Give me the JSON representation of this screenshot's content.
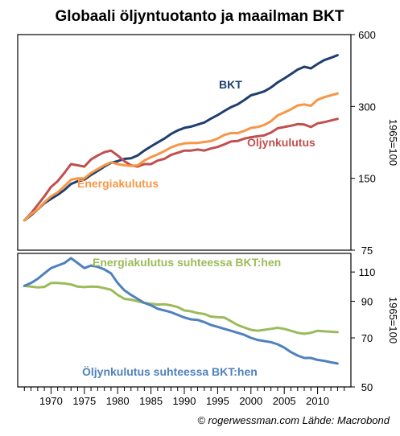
{
  "title": "Globaali öljyntuotanto ja maailman BKT",
  "credit": "© rogerwessman.com Lähde: Macrobond",
  "chart_data": [
    {
      "type": "line",
      "ylabel": "1965=100",
      "yscale": "log",
      "ylim": [
        75,
        600
      ],
      "yticks": [
        75,
        150,
        300,
        600
      ],
      "x": [
        1966,
        1967,
        1968,
        1969,
        1970,
        1971,
        1972,
        1973,
        1974,
        1975,
        1976,
        1977,
        1978,
        1979,
        1980,
        1981,
        1982,
        1983,
        1984,
        1985,
        1986,
        1987,
        1988,
        1989,
        1990,
        1991,
        1992,
        1993,
        1994,
        1995,
        1996,
        1997,
        1998,
        1999,
        2000,
        2001,
        2002,
        2003,
        2004,
        2005,
        2006,
        2007,
        2008,
        2009,
        2010,
        2011,
        2012,
        2013
      ],
      "series": [
        {
          "name": "BKT",
          "color": "#1f3f6e",
          "values": [
            100,
            105,
            111,
            118,
            123,
            128,
            134,
            142,
            146,
            148,
            155,
            161,
            168,
            174,
            177,
            181,
            182,
            187,
            196,
            204,
            212,
            220,
            230,
            238,
            244,
            247,
            252,
            257,
            267,
            276,
            287,
            298,
            306,
            319,
            334,
            340,
            347,
            360,
            378,
            393,
            410,
            428,
            440,
            433,
            452,
            469,
            480,
            492
          ]
        },
        {
          "name": "Öljynkulutus",
          "color": "#c0504d",
          "values": [
            100,
            107,
            116,
            126,
            138,
            146,
            158,
            172,
            170,
            168,
            180,
            187,
            193,
            196,
            187,
            177,
            170,
            168,
            172,
            172,
            178,
            181,
            188,
            192,
            196,
            196,
            198,
            196,
            200,
            203,
            208,
            214,
            215,
            220,
            223,
            225,
            227,
            233,
            243,
            246,
            249,
            253,
            252,
            246,
            255,
            258,
            262,
            266
          ]
        },
        {
          "name": "Energiakulutus",
          "color": "#f79646",
          "values": [
            100,
            106,
            111,
            119,
            126,
            131,
            139,
            148,
            150,
            150,
            158,
            164,
            170,
            175,
            172,
            170,
            169,
            170,
            178,
            184,
            189,
            195,
            202,
            207,
            210,
            211,
            211,
            213,
            215,
            220,
            228,
            232,
            232,
            237,
            244,
            246,
            251,
            260,
            275,
            283,
            292,
            303,
            306,
            302,
            320,
            328,
            334,
            340
          ]
        }
      ]
    },
    {
      "type": "line",
      "ylabel": "1965=100",
      "yscale": "log",
      "ylim": [
        50,
        125
      ],
      "yticks": [
        50,
        70,
        90,
        110
      ],
      "x": [
        1966,
        1967,
        1968,
        1969,
        1970,
        1971,
        1972,
        1973,
        1974,
        1975,
        1976,
        1977,
        1978,
        1979,
        1980,
        1981,
        1982,
        1983,
        1984,
        1985,
        1986,
        1987,
        1988,
        1989,
        1990,
        1991,
        1992,
        1993,
        1994,
        1995,
        1996,
        1997,
        1998,
        1999,
        2000,
        2001,
        2002,
        2003,
        2004,
        2005,
        2006,
        2007,
        2008,
        2009,
        2010,
        2011,
        2012,
        2013
      ],
      "series": [
        {
          "name": "Energiakulutus suhteessa BKT:hen",
          "color": "#9bbb59",
          "values": [
            100,
            99.5,
            99,
            99.3,
            102,
            102,
            101.7,
            101,
            99.5,
            99.2,
            99.5,
            99.4,
            98.5,
            97.4,
            94,
            91.5,
            91,
            90,
            89,
            88.5,
            88,
            88.2,
            87.5,
            86.5,
            84.5,
            84,
            83,
            82.5,
            81,
            80.7,
            80.5,
            78.5,
            76.5,
            75.2,
            74,
            73.5,
            74,
            74.5,
            75,
            74.5,
            73.5,
            72.5,
            72,
            72.5,
            73.5,
            73.2,
            73,
            72.8
          ]
        },
        {
          "name": "Öljynkulutus suhteessa BKT:hen",
          "color": "#4f81bd",
          "values": [
            100,
            102,
            105,
            109,
            113,
            115,
            117,
            121,
            117,
            113,
            115,
            114,
            112,
            109,
            102,
            97,
            94,
            91.5,
            89,
            87.5,
            85.5,
            84.5,
            83.5,
            82,
            80.5,
            79.5,
            79.2,
            78,
            76.5,
            75.5,
            74.5,
            73.5,
            72.5,
            71.5,
            70,
            69,
            68.5,
            68,
            67,
            65.5,
            63.5,
            62,
            61,
            61,
            60.2,
            59.8,
            59.2,
            58.7
          ]
        }
      ]
    }
  ],
  "labels": {
    "bkt": "BKT",
    "oljy": "Öljynkulutus",
    "energia": "Energiakulutus",
    "energia_suhde": "Energiakulutus suhteessa BKT:hen",
    "oljy_suhde": "Öljynkulutus suhteessa BKT:hen"
  },
  "xticks": [
    1970,
    1975,
    1980,
    1985,
    1990,
    1995,
    2000,
    2005,
    2010
  ]
}
